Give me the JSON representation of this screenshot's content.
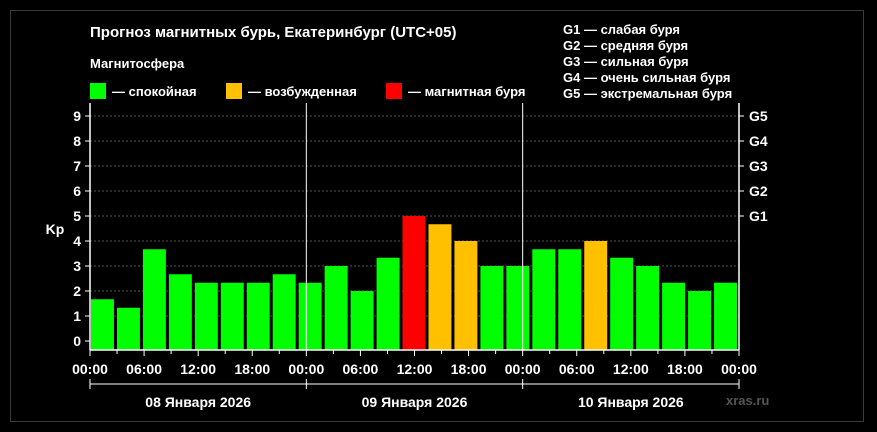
{
  "title": "Прогноз магнитных бурь, Екатеринбург (UTC+05)",
  "subtitle": "Магнитосфера",
  "legend": [
    {
      "label": "— спокойная",
      "color": "#00ff00"
    },
    {
      "label": "— возбужденная",
      "color": "#ffc000"
    },
    {
      "label": "— магнитная буря",
      "color": "#ff0000"
    }
  ],
  "g_legend": [
    "G1 — слабая буря",
    "G2 — средняя буря",
    "G3 — сильная буря",
    "G4 — очень сильная буря",
    "G5 — экстремальная буря"
  ],
  "watermark": "xras.ru",
  "colors": {
    "quiet": "#00ff00",
    "unsettled": "#ffc000",
    "storm": "#ff0000",
    "grid": "#555555"
  },
  "chart_data": {
    "type": "bar",
    "ylabel": "Kp",
    "ylim": [
      0,
      9
    ],
    "yticks": [
      0,
      1,
      2,
      3,
      4,
      5,
      6,
      7,
      8,
      9
    ],
    "right_ticks": [
      {
        "value": 5,
        "label": "G1"
      },
      {
        "value": 6,
        "label": "G2"
      },
      {
        "value": 7,
        "label": "G3"
      },
      {
        "value": 8,
        "label": "G4"
      },
      {
        "value": 9,
        "label": "G5"
      }
    ],
    "grid": true,
    "legend_position": "top",
    "xtick_labels": [
      "00:00",
      "06:00",
      "12:00",
      "18:00",
      "00:00",
      "06:00",
      "12:00",
      "18:00",
      "00:00",
      "06:00",
      "12:00",
      "18:00",
      "00:00"
    ],
    "days": [
      "08 Января 2026",
      "09 Января 2026",
      "10 Января 2026"
    ],
    "interval_hours": 3,
    "series": [
      {
        "values": [
          1.67,
          1.33,
          3.67,
          2.67,
          2.33,
          2.33,
          2.33,
          2.67,
          2.33,
          3.0,
          2.0,
          3.33,
          5.0,
          4.67,
          4.0,
          3.0,
          3.0,
          3.67,
          3.67,
          4.0,
          3.33,
          3.0,
          2.33,
          2.0,
          2.33
        ],
        "levels": [
          "quiet",
          "quiet",
          "quiet",
          "quiet",
          "quiet",
          "quiet",
          "quiet",
          "quiet",
          "quiet",
          "quiet",
          "quiet",
          "quiet",
          "storm",
          "unsettled",
          "unsettled",
          "quiet",
          "quiet",
          "quiet",
          "quiet",
          "unsettled",
          "quiet",
          "quiet",
          "quiet",
          "quiet",
          "quiet"
        ]
      }
    ]
  }
}
